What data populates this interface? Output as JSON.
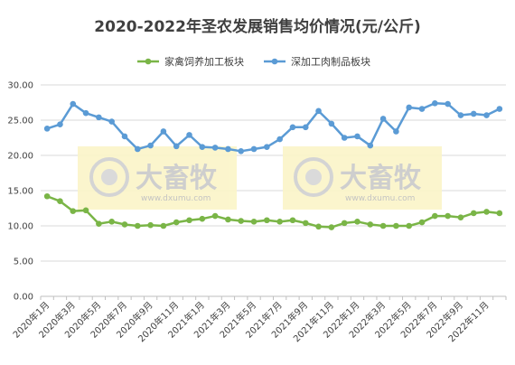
{
  "chart_data": {
    "type": "line",
    "title": "2020-2022年圣农发展销售均价情况(元/公斤)",
    "xlabel": "",
    "ylabel": "",
    "ylim": [
      0,
      30
    ],
    "yticks": [
      "0.00",
      "5.00",
      "10.00",
      "15.00",
      "20.00",
      "25.00",
      "30.00"
    ],
    "grid": true,
    "legend_position": "top",
    "x": [
      "2020年1月",
      "2020年2月",
      "2020年3月",
      "2020年4月",
      "2020年5月",
      "2020年6月",
      "2020年7月",
      "2020年8月",
      "2020年9月",
      "2020年10月",
      "2020年11月",
      "2020年12月",
      "2021年1月",
      "2021年2月",
      "2021年3月",
      "2021年4月",
      "2021年5月",
      "2021年6月",
      "2021年7月",
      "2021年8月",
      "2021年9月",
      "2021年10月",
      "2021年11月",
      "2021年12月",
      "2022年1月",
      "2022年2月",
      "2022年3月",
      "2022年4月",
      "2022年5月",
      "2022年6月",
      "2022年7月",
      "2022年8月",
      "2022年9月",
      "2022年10月",
      "2022年11月",
      "2022年12月"
    ],
    "xtick_labels": [
      "2020年1月",
      "2020年3月",
      "2020年5月",
      "2020年7月",
      "2020年9月",
      "2020年11月",
      "2021年1月",
      "2021年3月",
      "2021年5月",
      "2021年7月",
      "2021年9月",
      "2021年11月",
      "2022年1月",
      "2022年3月",
      "2022年5月",
      "2022年7月",
      "2022年9月",
      "2022年11月"
    ],
    "series": [
      {
        "name": "家禽饲养加工板块",
        "color": "#7ab547",
        "values": [
          14.2,
          13.5,
          12.1,
          12.2,
          10.3,
          10.6,
          10.2,
          10.0,
          10.1,
          10.0,
          10.5,
          10.8,
          11.0,
          11.4,
          10.9,
          10.7,
          10.6,
          10.8,
          10.6,
          10.8,
          10.4,
          9.9,
          9.8,
          10.4,
          10.6,
          10.2,
          10.0,
          10.0,
          10.0,
          10.5,
          11.4,
          11.4,
          11.2,
          11.8,
          12.0,
          11.8
        ]
      },
      {
        "name": "深加工肉制品板块",
        "color": "#5b9bd5",
        "values": [
          23.8,
          24.4,
          27.3,
          26.0,
          25.4,
          24.8,
          22.7,
          20.9,
          21.4,
          23.4,
          21.3,
          22.9,
          21.2,
          21.1,
          20.9,
          20.6,
          20.9,
          21.2,
          22.3,
          24.0,
          24.0,
          26.3,
          24.5,
          22.5,
          22.7,
          21.4,
          25.2,
          23.4,
          26.8,
          26.6,
          27.4,
          27.3,
          25.7,
          25.9,
          25.7,
          26.6
        ]
      }
    ]
  },
  "watermark": {
    "brand": "大畜牧",
    "url": "www.dxumu.com"
  }
}
